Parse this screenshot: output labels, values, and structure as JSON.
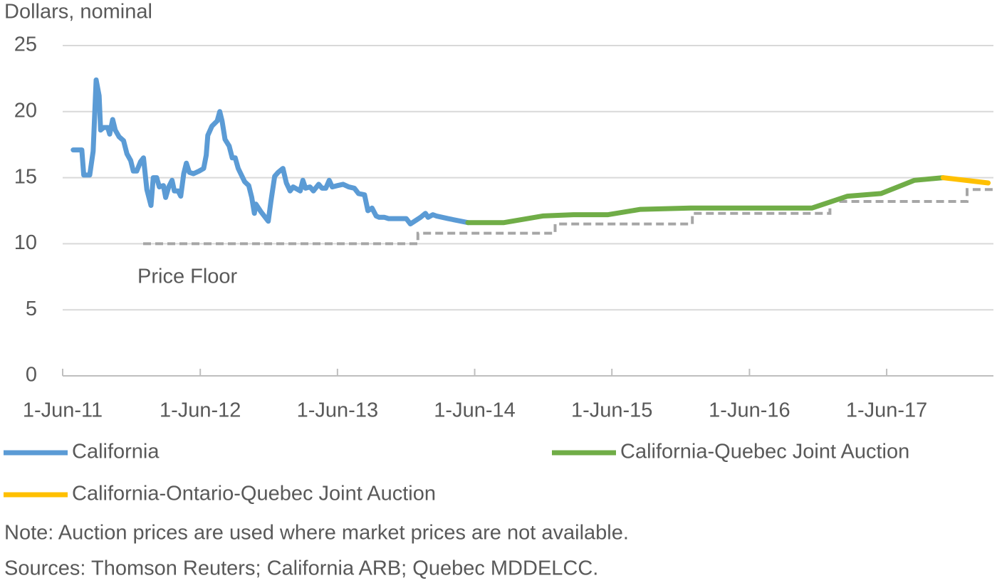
{
  "chart_data": {
    "type": "line",
    "y_label": "Dollars, nominal",
    "xlim": [
      "2011-06-01",
      "2018-03-12"
    ],
    "xticks": [
      {
        "value": "2011-06-01",
        "label": "1-Jun-11"
      },
      {
        "value": "2012-06-01",
        "label": "1-Jun-12"
      },
      {
        "value": "2013-06-01",
        "label": "1-Jun-13"
      },
      {
        "value": "2014-06-01",
        "label": "1-Jun-14"
      },
      {
        "value": "2015-06-01",
        "label": "1-Jun-15"
      },
      {
        "value": "2016-06-01",
        "label": "1-Jun-16"
      },
      {
        "value": "2017-06-01",
        "label": "1-Jun-17"
      }
    ],
    "ylim": [
      0,
      25
    ],
    "yticks": [
      0,
      5,
      10,
      15,
      20,
      25
    ],
    "grid": true,
    "legend": "bottom",
    "series": [
      {
        "name": "California",
        "color": "#5b9bd5",
        "x": [
          "2011-06-29",
          "2011-07-22",
          "2011-07-27",
          "2011-08-12",
          "2011-08-21",
          "2011-08-29",
          "2011-09-06",
          "2011-09-10",
          "2011-09-18",
          "2011-09-29",
          "2011-10-04",
          "2011-10-12",
          "2011-10-19",
          "2011-10-29",
          "2011-11-10",
          "2011-11-19",
          "2011-11-29",
          "2011-12-06",
          "2011-12-15",
          "2011-12-25",
          "2012-01-02",
          "2012-01-11",
          "2012-01-22",
          "2012-01-28",
          "2012-02-06",
          "2012-02-13",
          "2012-02-24",
          "2012-03-01",
          "2012-03-09",
          "2012-03-18",
          "2012-03-24",
          "2012-04-03",
          "2012-04-10",
          "2012-04-18",
          "2012-04-25",
          "2012-05-03",
          "2012-05-14",
          "2012-05-29",
          "2012-06-10",
          "2012-06-17",
          "2012-06-21",
          "2012-07-02",
          "2012-07-16",
          "2012-07-23",
          "2012-07-29",
          "2012-08-06",
          "2012-08-17",
          "2012-08-25",
          "2012-09-02",
          "2012-09-10",
          "2012-09-27",
          "2012-10-08",
          "2012-10-16",
          "2012-10-23",
          "2012-10-27",
          "2012-11-10",
          "2012-11-21",
          "2012-11-29",
          "2012-12-06",
          "2012-12-16",
          "2012-12-25",
          "2013-01-07",
          "2013-01-16",
          "2013-01-26",
          "2013-02-03",
          "2013-02-22",
          "2013-03-01",
          "2013-03-08",
          "2013-03-20",
          "2013-03-29",
          "2013-04-12",
          "2013-04-21",
          "2013-05-01",
          "2013-05-10",
          "2013-05-18",
          "2013-06-01",
          "2013-06-16",
          "2013-07-01",
          "2013-07-16",
          "2013-07-27",
          "2013-08-12",
          "2013-08-21",
          "2013-09-01",
          "2013-09-12",
          "2013-09-20",
          "2013-10-04",
          "2013-10-15",
          "2013-12-01",
          "2013-12-12",
          "2014-01-08",
          "2014-01-21",
          "2014-01-28",
          "2014-02-10",
          "2014-02-19",
          "2014-03-22",
          "2014-05-14"
        ],
        "values": [
          17.1,
          17.1,
          15.2,
          15.2,
          17.0,
          22.4,
          21.2,
          18.6,
          18.8,
          18.8,
          18.3,
          19.4,
          18.6,
          18.1,
          17.8,
          16.8,
          16.3,
          15.5,
          15.5,
          16.2,
          16.5,
          14.1,
          12.9,
          15.0,
          15.0,
          14.3,
          14.4,
          13.5,
          14.3,
          14.8,
          14.0,
          14.0,
          13.6,
          15.3,
          16.1,
          15.4,
          15.3,
          15.5,
          15.7,
          16.7,
          18.2,
          18.9,
          19.3,
          20.0,
          19.3,
          17.9,
          17.4,
          16.5,
          16.5,
          15.7,
          14.7,
          14.4,
          13.5,
          12.3,
          13.0,
          12.4,
          12.0,
          11.7,
          13.2,
          15.1,
          15.4,
          15.7,
          14.6,
          14.0,
          14.3,
          14.0,
          14.8,
          14.2,
          14.3,
          14.0,
          14.5,
          14.2,
          14.2,
          14.8,
          14.3,
          14.4,
          14.5,
          14.3,
          14.2,
          13.8,
          13.7,
          12.5,
          12.7,
          12.1,
          12.0,
          12.0,
          11.9,
          11.9,
          11.5,
          12.0,
          12.3,
          12.0,
          12.2,
          12.1,
          11.9,
          11.6
        ]
      },
      {
        "name": "California-Quebec Joint Auction",
        "color": "#70ad47",
        "x": [
          "2014-05-14",
          "2014-08-18",
          "2014-11-29",
          "2015-02-19",
          "2015-05-22",
          "2015-08-16",
          "2015-12-27",
          "2016-11-14",
          "2017-02-17",
          "2017-05-17",
          "2017-08-14",
          "2017-10-29"
        ],
        "values": [
          11.6,
          11.6,
          12.1,
          12.2,
          12.2,
          12.6,
          12.7,
          12.7,
          13.6,
          13.8,
          14.8,
          15.0
        ]
      },
      {
        "name": "California-Ontario-Quebec Joint Auction",
        "color": "#ffc000",
        "x": [
          "2017-10-29",
          "2018-02-26"
        ],
        "values": [
          15.0,
          14.6
        ]
      }
    ],
    "price_floor": {
      "label": "Price Floor",
      "color": "#a6a6a6",
      "x": [
        "2012-01-01",
        "2014-01-01",
        "2014-01-01",
        "2015-01-01",
        "2015-01-01",
        "2016-01-01",
        "2016-01-01",
        "2017-01-01",
        "2017-01-01",
        "2018-01-01",
        "2018-01-01",
        "2018-03-12"
      ],
      "values": [
        10,
        10,
        10.8,
        10.8,
        11.5,
        11.5,
        12.3,
        12.3,
        13.2,
        13.2,
        14.1,
        14.1
      ]
    },
    "notes": [
      "Note: Auction prices are used where market prices are not available.",
      "Sources: Thomson Reuters; California ARB; Quebec MDDELCC."
    ]
  }
}
